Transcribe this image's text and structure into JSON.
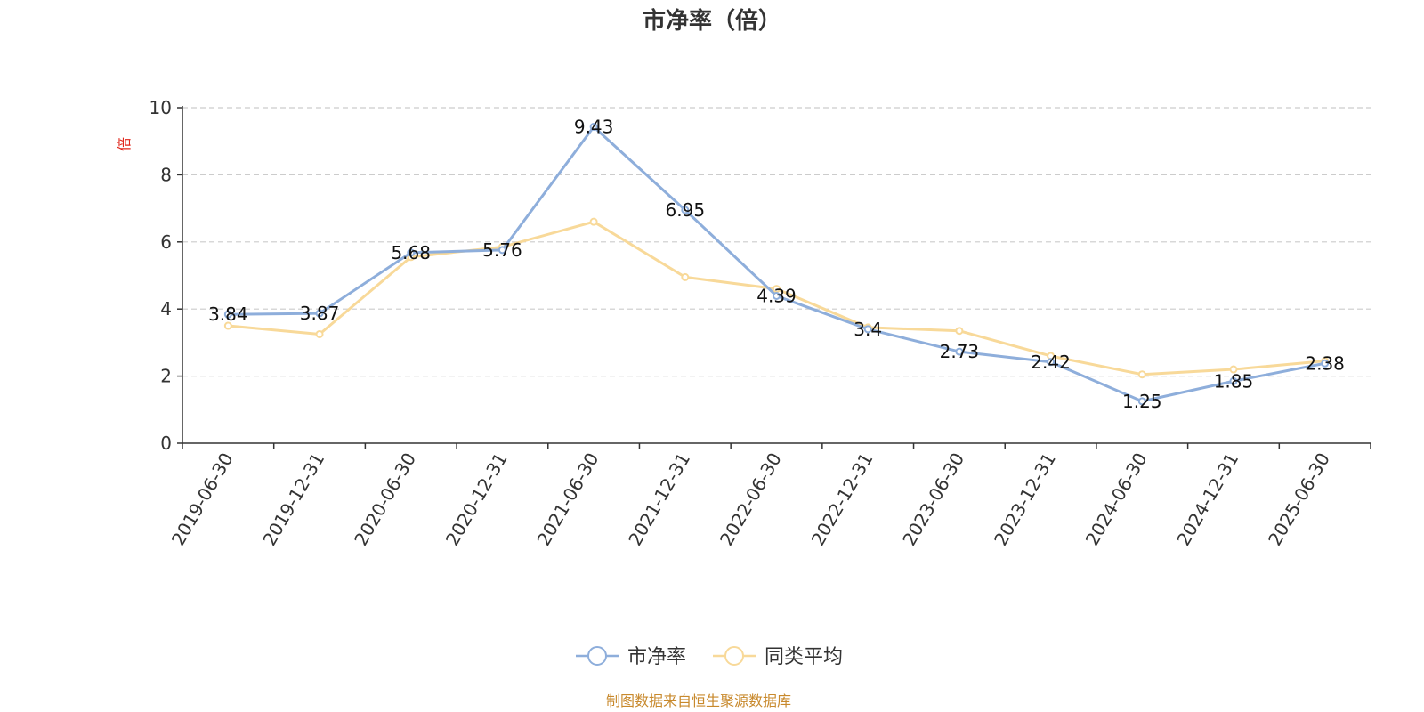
{
  "chart_data": {
    "type": "line",
    "title": "市净率（倍）",
    "ylabel": "倍",
    "xlabel": "",
    "ylim": [
      0,
      10
    ],
    "yticks": [
      0,
      2,
      4,
      6,
      8,
      10
    ],
    "grid": true,
    "legend_placement": "bottom-center",
    "categories": [
      "2019-06-30",
      "2019-12-31",
      "2020-06-30",
      "2020-12-31",
      "2021-06-30",
      "2021-12-31",
      "2022-06-30",
      "2022-12-31",
      "2023-06-30",
      "2023-12-31",
      "2024-06-30",
      "2024-12-31",
      "2025-06-30"
    ],
    "series": [
      {
        "name": "市净率",
        "color": "#8eaedb",
        "labeled": true,
        "values": [
          3.84,
          3.87,
          5.68,
          5.76,
          9.43,
          6.95,
          4.39,
          3.4,
          2.73,
          2.42,
          1.25,
          1.85,
          2.38
        ]
      },
      {
        "name": "同类平均",
        "color": "#f8d999",
        "labeled": false,
        "values": [
          3.5,
          3.25,
          5.55,
          5.85,
          6.6,
          4.95,
          4.6,
          3.45,
          3.35,
          2.6,
          2.05,
          2.2,
          2.45
        ]
      }
    ]
  },
  "footer": {
    "source": "制图数据来自恒生聚源数据库"
  }
}
